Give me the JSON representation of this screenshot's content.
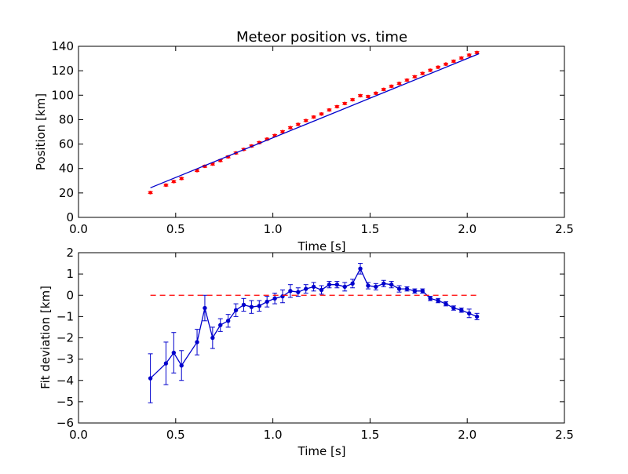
{
  "chart_data": [
    {
      "type": "scatter",
      "title": "Meteor position vs. time",
      "xlabel": "Time [s]",
      "ylabel": "Position [km]",
      "xlim": [
        0.0,
        2.5
      ],
      "ylim": [
        0,
        140
      ],
      "xticks": [
        "0.0",
        "0.5",
        "1.0",
        "1.5",
        "2.0",
        "2.5"
      ],
      "yticks": [
        "0",
        "20",
        "40",
        "60",
        "80",
        "100",
        "120",
        "140"
      ],
      "grid": false,
      "series": [
        {
          "style": "points-with-errorbars",
          "color": "#ff0000",
          "x": [
            0.37,
            0.45,
            0.49,
            0.53,
            0.61,
            0.65,
            0.69,
            0.73,
            0.77,
            0.81,
            0.85,
            0.89,
            0.93,
            0.97,
            1.01,
            1.05,
            1.09,
            1.13,
            1.17,
            1.21,
            1.25,
            1.29,
            1.33,
            1.37,
            1.41,
            1.45,
            1.49,
            1.53,
            1.57,
            1.61,
            1.65,
            1.69,
            1.73,
            1.77,
            1.81,
            1.85,
            1.89,
            1.93,
            1.97,
            2.01,
            2.05
          ],
          "y": [
            20.3,
            26.4,
            29.3,
            31.8,
            38.3,
            41.8,
            43.6,
            46.5,
            49.5,
            52.7,
            55.6,
            58.4,
            61.2,
            64.0,
            67.0,
            70.1,
            73.4,
            76.1,
            79.2,
            82.1,
            84.6,
            87.9,
            90.6,
            93.2,
            96.3,
            99.6,
            98.9,
            101.6,
            104.7,
            107.3,
            109.6,
            112.3,
            115.1,
            117.8,
            120.4,
            122.9,
            125.4,
            127.8,
            130.4,
            132.8,
            134.9
          ],
          "yerr": 0.8
        },
        {
          "style": "line",
          "color": "#0000cc",
          "x": [
            0.37,
            2.06
          ],
          "y": [
            24.2,
            133.9
          ]
        }
      ]
    },
    {
      "type": "line",
      "title": "",
      "xlabel": "Time [s]",
      "ylabel": "Fit deviation [km]",
      "xlim": [
        0.0,
        2.5
      ],
      "ylim": [
        -6,
        2
      ],
      "xticks": [
        "0.0",
        "0.5",
        "1.0",
        "1.5",
        "2.0",
        "2.5"
      ],
      "yticks": [
        "−6",
        "−5",
        "−4",
        "−3",
        "−2",
        "−1",
        "0",
        "1",
        "2"
      ],
      "grid": false,
      "series": [
        {
          "style": "line-points-errorbars",
          "color": "#0000cc",
          "x": [
            0.37,
            0.45,
            0.49,
            0.53,
            0.61,
            0.65,
            0.69,
            0.73,
            0.77,
            0.81,
            0.85,
            0.89,
            0.93,
            0.97,
            1.01,
            1.05,
            1.09,
            1.13,
            1.17,
            1.21,
            1.25,
            1.29,
            1.33,
            1.37,
            1.41,
            1.45,
            1.49,
            1.53,
            1.57,
            1.61,
            1.65,
            1.69,
            1.73,
            1.77,
            1.81,
            1.85,
            1.89,
            1.93,
            1.97,
            2.01,
            2.05
          ],
          "y": [
            -3.9,
            -3.2,
            -2.7,
            -3.3,
            -2.2,
            -0.6,
            -2.0,
            -1.4,
            -1.2,
            -0.7,
            -0.45,
            -0.55,
            -0.5,
            -0.3,
            -0.15,
            -0.05,
            0.2,
            0.15,
            0.3,
            0.4,
            0.25,
            0.5,
            0.5,
            0.4,
            0.55,
            1.25,
            0.45,
            0.4,
            0.55,
            0.5,
            0.3,
            0.3,
            0.2,
            0.2,
            -0.15,
            -0.25,
            -0.4,
            -0.6,
            -0.7,
            -0.85,
            -1.0
          ],
          "yerr": [
            1.15,
            1.0,
            0.95,
            0.7,
            0.6,
            0.6,
            0.5,
            0.3,
            0.3,
            0.3,
            0.3,
            0.3,
            0.25,
            0.25,
            0.25,
            0.3,
            0.3,
            0.2,
            0.2,
            0.2,
            0.2,
            0.15,
            0.15,
            0.2,
            0.2,
            0.25,
            0.15,
            0.15,
            0.15,
            0.15,
            0.15,
            0.1,
            0.1,
            0.1,
            0.1,
            0.1,
            0.1,
            0.1,
            0.1,
            0.2,
            0.15
          ]
        },
        {
          "style": "dashed-line",
          "color": "#ff0000",
          "x": [
            0.37,
            2.06
          ],
          "y": [
            0,
            0
          ]
        }
      ]
    }
  ]
}
